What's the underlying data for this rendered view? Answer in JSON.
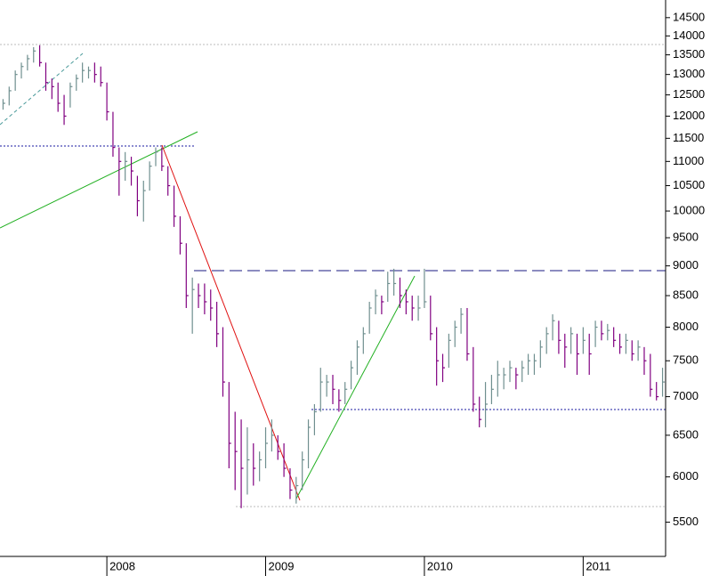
{
  "chart_data": {
    "type": "hlc",
    "categories": [
      null,
      null,
      null,
      null,
      null,
      null,
      null,
      null,
      null,
      null,
      null,
      null,
      null,
      null,
      null,
      null,
      null,
      "2008",
      null,
      null,
      null,
      null,
      null,
      null,
      null,
      null,
      null,
      null,
      null,
      null,
      null,
      null,
      null,
      null,
      null,
      null,
      null,
      null,
      null,
      null,
      null,
      null,
      null,
      "2009",
      null,
      null,
      null,
      null,
      null,
      null,
      null,
      null,
      null,
      null,
      null,
      null,
      null,
      null,
      null,
      null,
      null,
      null,
      null,
      null,
      null,
      null,
      null,
      null,
      null,
      "2010",
      null,
      null,
      null,
      null,
      null,
      null,
      null,
      null,
      null,
      null,
      null,
      null,
      null,
      null,
      null,
      null,
      null,
      null,
      null,
      null,
      null,
      null,
      null,
      null,
      null,
      "2011",
      null,
      null,
      null,
      null,
      null,
      null,
      null,
      null,
      null,
      null,
      null,
      null,
      null
    ],
    "high": [
      12400,
      12700,
      13100,
      13300,
      13500,
      13700,
      13750,
      13300,
      12900,
      12800,
      12500,
      12800,
      13000,
      13300,
      13200,
      13300,
      13200,
      12800,
      12100,
      11300,
      11200,
      11100,
      10700,
      10600,
      11000,
      11300,
      11300,
      10900,
      10500,
      9900,
      9400,
      8800,
      8700,
      8700,
      8600,
      8400,
      8000,
      7200,
      6800,
      6700,
      6600,
      6400,
      6300,
      6600,
      6700,
      6500,
      6400,
      6100,
      6000,
      6300,
      6700,
      6900,
      7400,
      7300,
      7300,
      7100,
      7200,
      7500,
      7800,
      8000,
      8400,
      8600,
      8500,
      8900,
      8950,
      8800,
      8600,
      8500,
      8500,
      8950,
      8500,
      8000,
      7600,
      7900,
      8100,
      8300,
      8300,
      7700,
      7000,
      7200,
      7300,
      7500,
      7400,
      7500,
      7400,
      7500,
      7600,
      7600,
      7800,
      8000,
      8200,
      8100,
      7900,
      8000,
      7900,
      8000,
      7900,
      8100,
      8100,
      8050,
      8000,
      7900,
      7900,
      7800,
      7800,
      7700,
      7600,
      7200,
      7400
    ],
    "low": [
      12150,
      12250,
      12600,
      12900,
      13100,
      13300,
      13200,
      12600,
      12400,
      12100,
      11800,
      12200,
      12600,
      12800,
      12900,
      12800,
      12700,
      11900,
      11100,
      10300,
      10600,
      10500,
      9900,
      9800,
      10400,
      10900,
      10800,
      10300,
      9700,
      9200,
      8300,
      7900,
      8300,
      8200,
      8100,
      7700,
      7000,
      6100,
      5850,
      5650,
      5800,
      5900,
      5950,
      6100,
      6300,
      6200,
      6000,
      5750,
      5700,
      5850,
      6100,
      6500,
      6800,
      7000,
      6900,
      6800,
      6900,
      7100,
      7300,
      7600,
      7900,
      8200,
      8200,
      8400,
      8500,
      8300,
      8200,
      8100,
      8100,
      8300,
      7800,
      7150,
      7200,
      7400,
      7700,
      7900,
      7500,
      6800,
      6600,
      6600,
      6900,
      7000,
      7100,
      7200,
      7100,
      7200,
      7300,
      7300,
      7400,
      7600,
      7800,
      7600,
      7400,
      7600,
      7300,
      7600,
      7300,
      7700,
      7800,
      7800,
      7700,
      7600,
      7600,
      7500,
      7500,
      7300,
      7000,
      6950,
      7000
    ],
    "close": [
      12300,
      12600,
      13000,
      13200,
      13400,
      13600,
      13300,
      12800,
      12700,
      12300,
      12000,
      12700,
      12900,
      13100,
      13100,
      13000,
      12800,
      12100,
      11300,
      11000,
      11000,
      10800,
      10200,
      10400,
      10900,
      11200,
      10900,
      10500,
      9900,
      9400,
      8500,
      8600,
      8500,
      8400,
      8300,
      7900,
      7200,
      6400,
      6300,
      6100,
      6200,
      6100,
      6200,
      6400,
      6500,
      6300,
      6100,
      5850,
      5900,
      6200,
      6600,
      6800,
      7200,
      7200,
      7100,
      6950,
      7100,
      7400,
      7700,
      7900,
      8300,
      8500,
      8400,
      8700,
      8700,
      8500,
      8400,
      8300,
      8300,
      8400,
      7900,
      7500,
      7400,
      7800,
      8000,
      8200,
      7600,
      6900,
      6700,
      6900,
      7100,
      7300,
      7300,
      7400,
      7300,
      7400,
      7500,
      7500,
      7700,
      7900,
      8100,
      7800,
      7700,
      7900,
      7600,
      7800,
      7600,
      8000,
      7900,
      7950,
      7800,
      7700,
      7800,
      7600,
      7700,
      7500,
      7100,
      7000,
      7200
    ],
    "colors": {
      "up": "#6f8f8f",
      "down": "#800080"
    },
    "log_scale": true,
    "ylim": [
      5150,
      15000
    ],
    "yticks": [
      5500,
      6000,
      6500,
      7000,
      7500,
      8000,
      8500,
      9000,
      9500,
      10000,
      10500,
      11000,
      11500,
      12000,
      12500,
      13000,
      13500,
      14000,
      14500
    ]
  }
}
